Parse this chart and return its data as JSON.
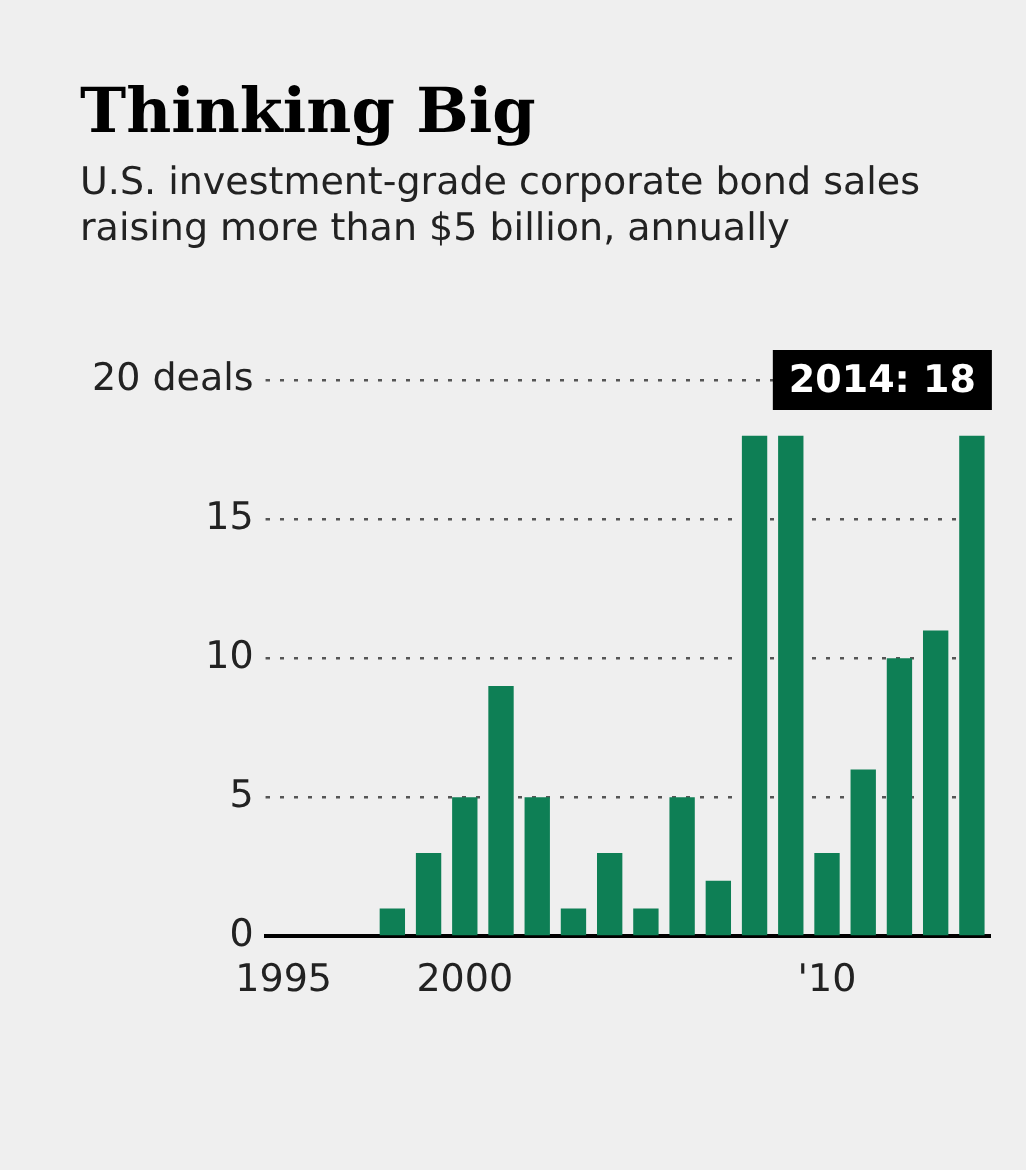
{
  "chart_data": {
    "type": "bar",
    "title": "Thinking Big",
    "subtitle": "U.S. investment-grade corporate bond sales raising more than $5 billion, annually",
    "categories": [
      "1995",
      null,
      null,
      null,
      null,
      "2000",
      null,
      null,
      null,
      null,
      null,
      null,
      null,
      null,
      null,
      "'10",
      null,
      null,
      null,
      null
    ],
    "values": [
      0,
      0,
      0,
      1,
      3,
      5,
      9,
      5,
      1,
      3,
      1,
      5,
      2,
      18,
      18,
      3,
      6,
      10,
      11,
      18
    ],
    "color": "#0e7f55",
    "ylim": [
      0,
      20
    ],
    "yticks": [
      0,
      5,
      10,
      15,
      {
        "value": 20,
        "label": "20 deals"
      }
    ],
    "grid": "y",
    "legend": false,
    "annotations": [
      "2014: 18"
    ]
  }
}
